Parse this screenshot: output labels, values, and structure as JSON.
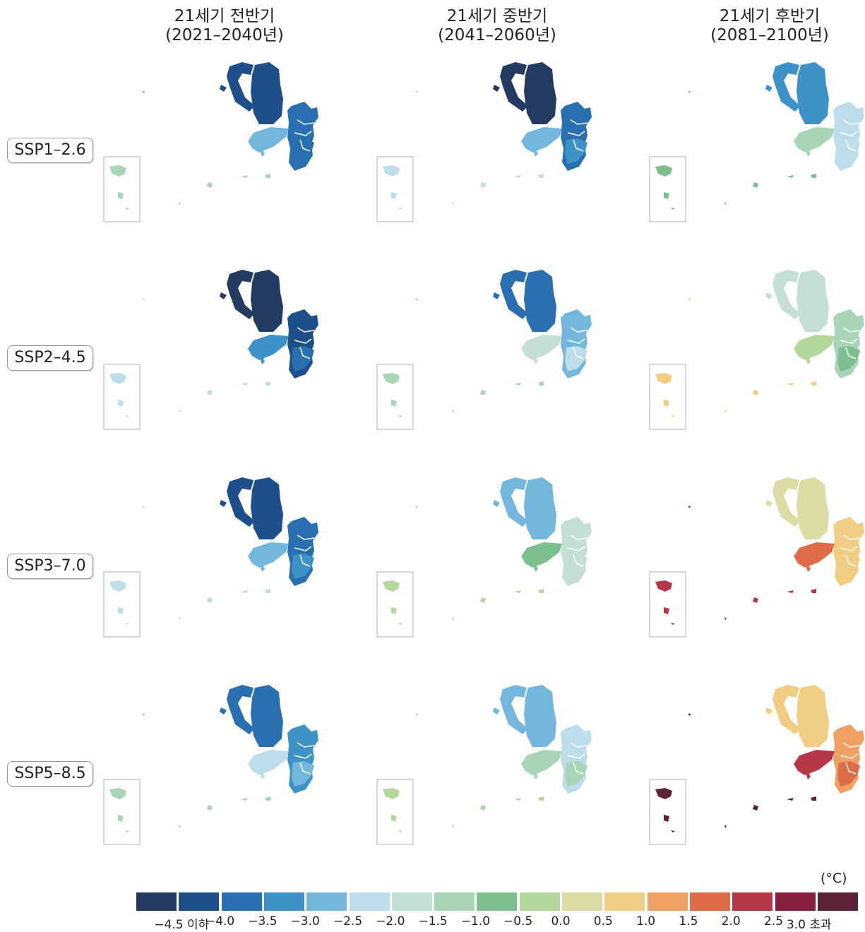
{
  "columns": [
    {
      "title": "21세기 전반기",
      "period": "(2021–2040년)"
    },
    {
      "title": "21세기 중반기",
      "period": "(2041–2060년)"
    },
    {
      "title": "21세기 후반기",
      "period": "(2081–2100년)"
    }
  ],
  "scenarios": [
    "SSP1–2.6",
    "SSP2–4.5",
    "SSP3–7.0",
    "SSP5–8.5"
  ],
  "legend": {
    "unit": "(°C)",
    "colors": [
      "#233a63",
      "#1f4f8a",
      "#2a6faf",
      "#3d93c7",
      "#74b7dc",
      "#bcdde9",
      "#c4dfd6",
      "#a7d5b5",
      "#7dbf8f",
      "#b5d79c",
      "#dedca5",
      "#f0cd82",
      "#eea163",
      "#de6c49",
      "#b53848",
      "#85203f",
      "#5c2237"
    ],
    "labels": [
      "−4.5 이하",
      "−4.0",
      "−3.5",
      "−3.0",
      "−2.5",
      "−2.0",
      "−1.5",
      "−1.0",
      "−0.5",
      "0.0",
      "0.5",
      "1.0",
      "1.5",
      "2.0",
      "2.5",
      "3.0 초과"
    ]
  },
  "map_values": [
    [
      {
        "north": 1,
        "nw": 1,
        "east": 2,
        "west": 4,
        "se": 2,
        "islands": 7,
        "inset": 7,
        "far": 4
      },
      {
        "north": 0,
        "nw": 0,
        "east": 2,
        "west": 4,
        "se": 3,
        "islands": 5,
        "inset": 5,
        "far": 5
      },
      {
        "north": 3,
        "nw": 3,
        "east": 5,
        "west": 7,
        "se": 5,
        "islands": 8,
        "inset": 8,
        "far": 8
      }
    ],
    [
      {
        "north": 0,
        "nw": 0,
        "east": 1,
        "west": 3,
        "se": 2,
        "islands": 5,
        "inset": 5,
        "far": 5
      },
      {
        "north": 2,
        "nw": 2,
        "east": 4,
        "west": 6,
        "se": 5,
        "islands": 7,
        "inset": 7,
        "far": 7
      },
      {
        "north": 6,
        "nw": 6,
        "east": 7,
        "west": 9,
        "se": 8,
        "islands": 11,
        "inset": 11,
        "far": 11
      }
    ],
    [
      {
        "north": 1,
        "nw": 1,
        "east": 2,
        "west": 4,
        "se": 3,
        "islands": 5,
        "inset": 5,
        "far": 5
      },
      {
        "north": 4,
        "nw": 4,
        "east": 6,
        "west": 8,
        "se": 6,
        "islands": 9,
        "inset": 9,
        "far": 9
      },
      {
        "north": 10,
        "nw": 10,
        "east": 11,
        "west": 13,
        "se": 11,
        "islands": 14,
        "inset": 14,
        "far": 14
      }
    ],
    [
      {
        "north": 2,
        "nw": 2,
        "east": 3,
        "west": 5,
        "se": 4,
        "islands": 7,
        "inset": 7,
        "far": 7
      },
      {
        "north": 4,
        "nw": 4,
        "east": 5,
        "west": 7,
        "se": 7,
        "islands": 9,
        "inset": 9,
        "far": 9
      },
      {
        "north": 11,
        "nw": 11,
        "east": 12,
        "west": 14,
        "se": 13,
        "islands": 16,
        "inset": 16,
        "far": 16
      }
    ]
  ]
}
